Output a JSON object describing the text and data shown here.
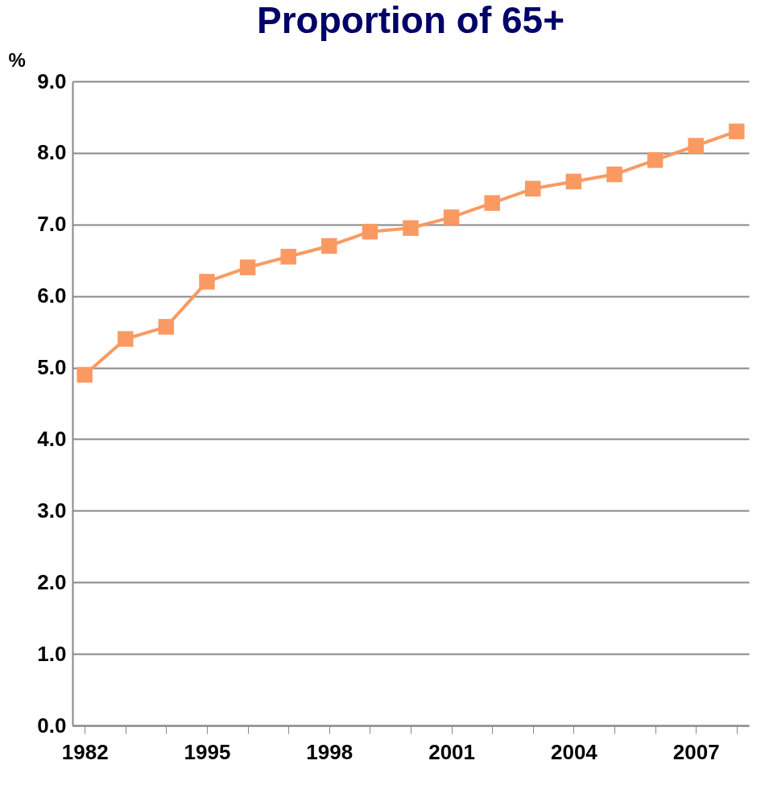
{
  "chart_data": {
    "type": "line",
    "title": "Proportion of 65+",
    "ylabel": "%",
    "categories": [
      "1982",
      null,
      null,
      "1995",
      null,
      null,
      "1998",
      null,
      null,
      "2001",
      null,
      null,
      "2004",
      null,
      null,
      "2007",
      null
    ],
    "series": [
      {
        "color": "#fa9a62",
        "values": [
          4.9,
          5.4,
          5.57,
          6.2,
          6.4,
          6.55,
          6.7,
          6.9,
          6.95,
          7.1,
          7.3,
          7.5,
          7.6,
          7.7,
          7.9,
          8.1,
          8.3
        ]
      }
    ],
    "ylim": [
      0,
      9
    ],
    "yticks": [
      {
        "value": 0,
        "label": "0.0"
      },
      {
        "value": 1,
        "label": "1.0"
      },
      {
        "value": 2,
        "label": "2.0"
      },
      {
        "value": 3,
        "label": "3.0"
      },
      {
        "value": 4,
        "label": "4.0"
      },
      {
        "value": 5,
        "label": "5.0"
      },
      {
        "value": 6,
        "label": "6.0"
      },
      {
        "value": 7,
        "label": "7.0"
      },
      {
        "value": 8,
        "label": "8.0"
      },
      {
        "value": 9,
        "label": "9.0"
      }
    ],
    "grid": "y",
    "marker": "square",
    "line_style": "solid"
  }
}
